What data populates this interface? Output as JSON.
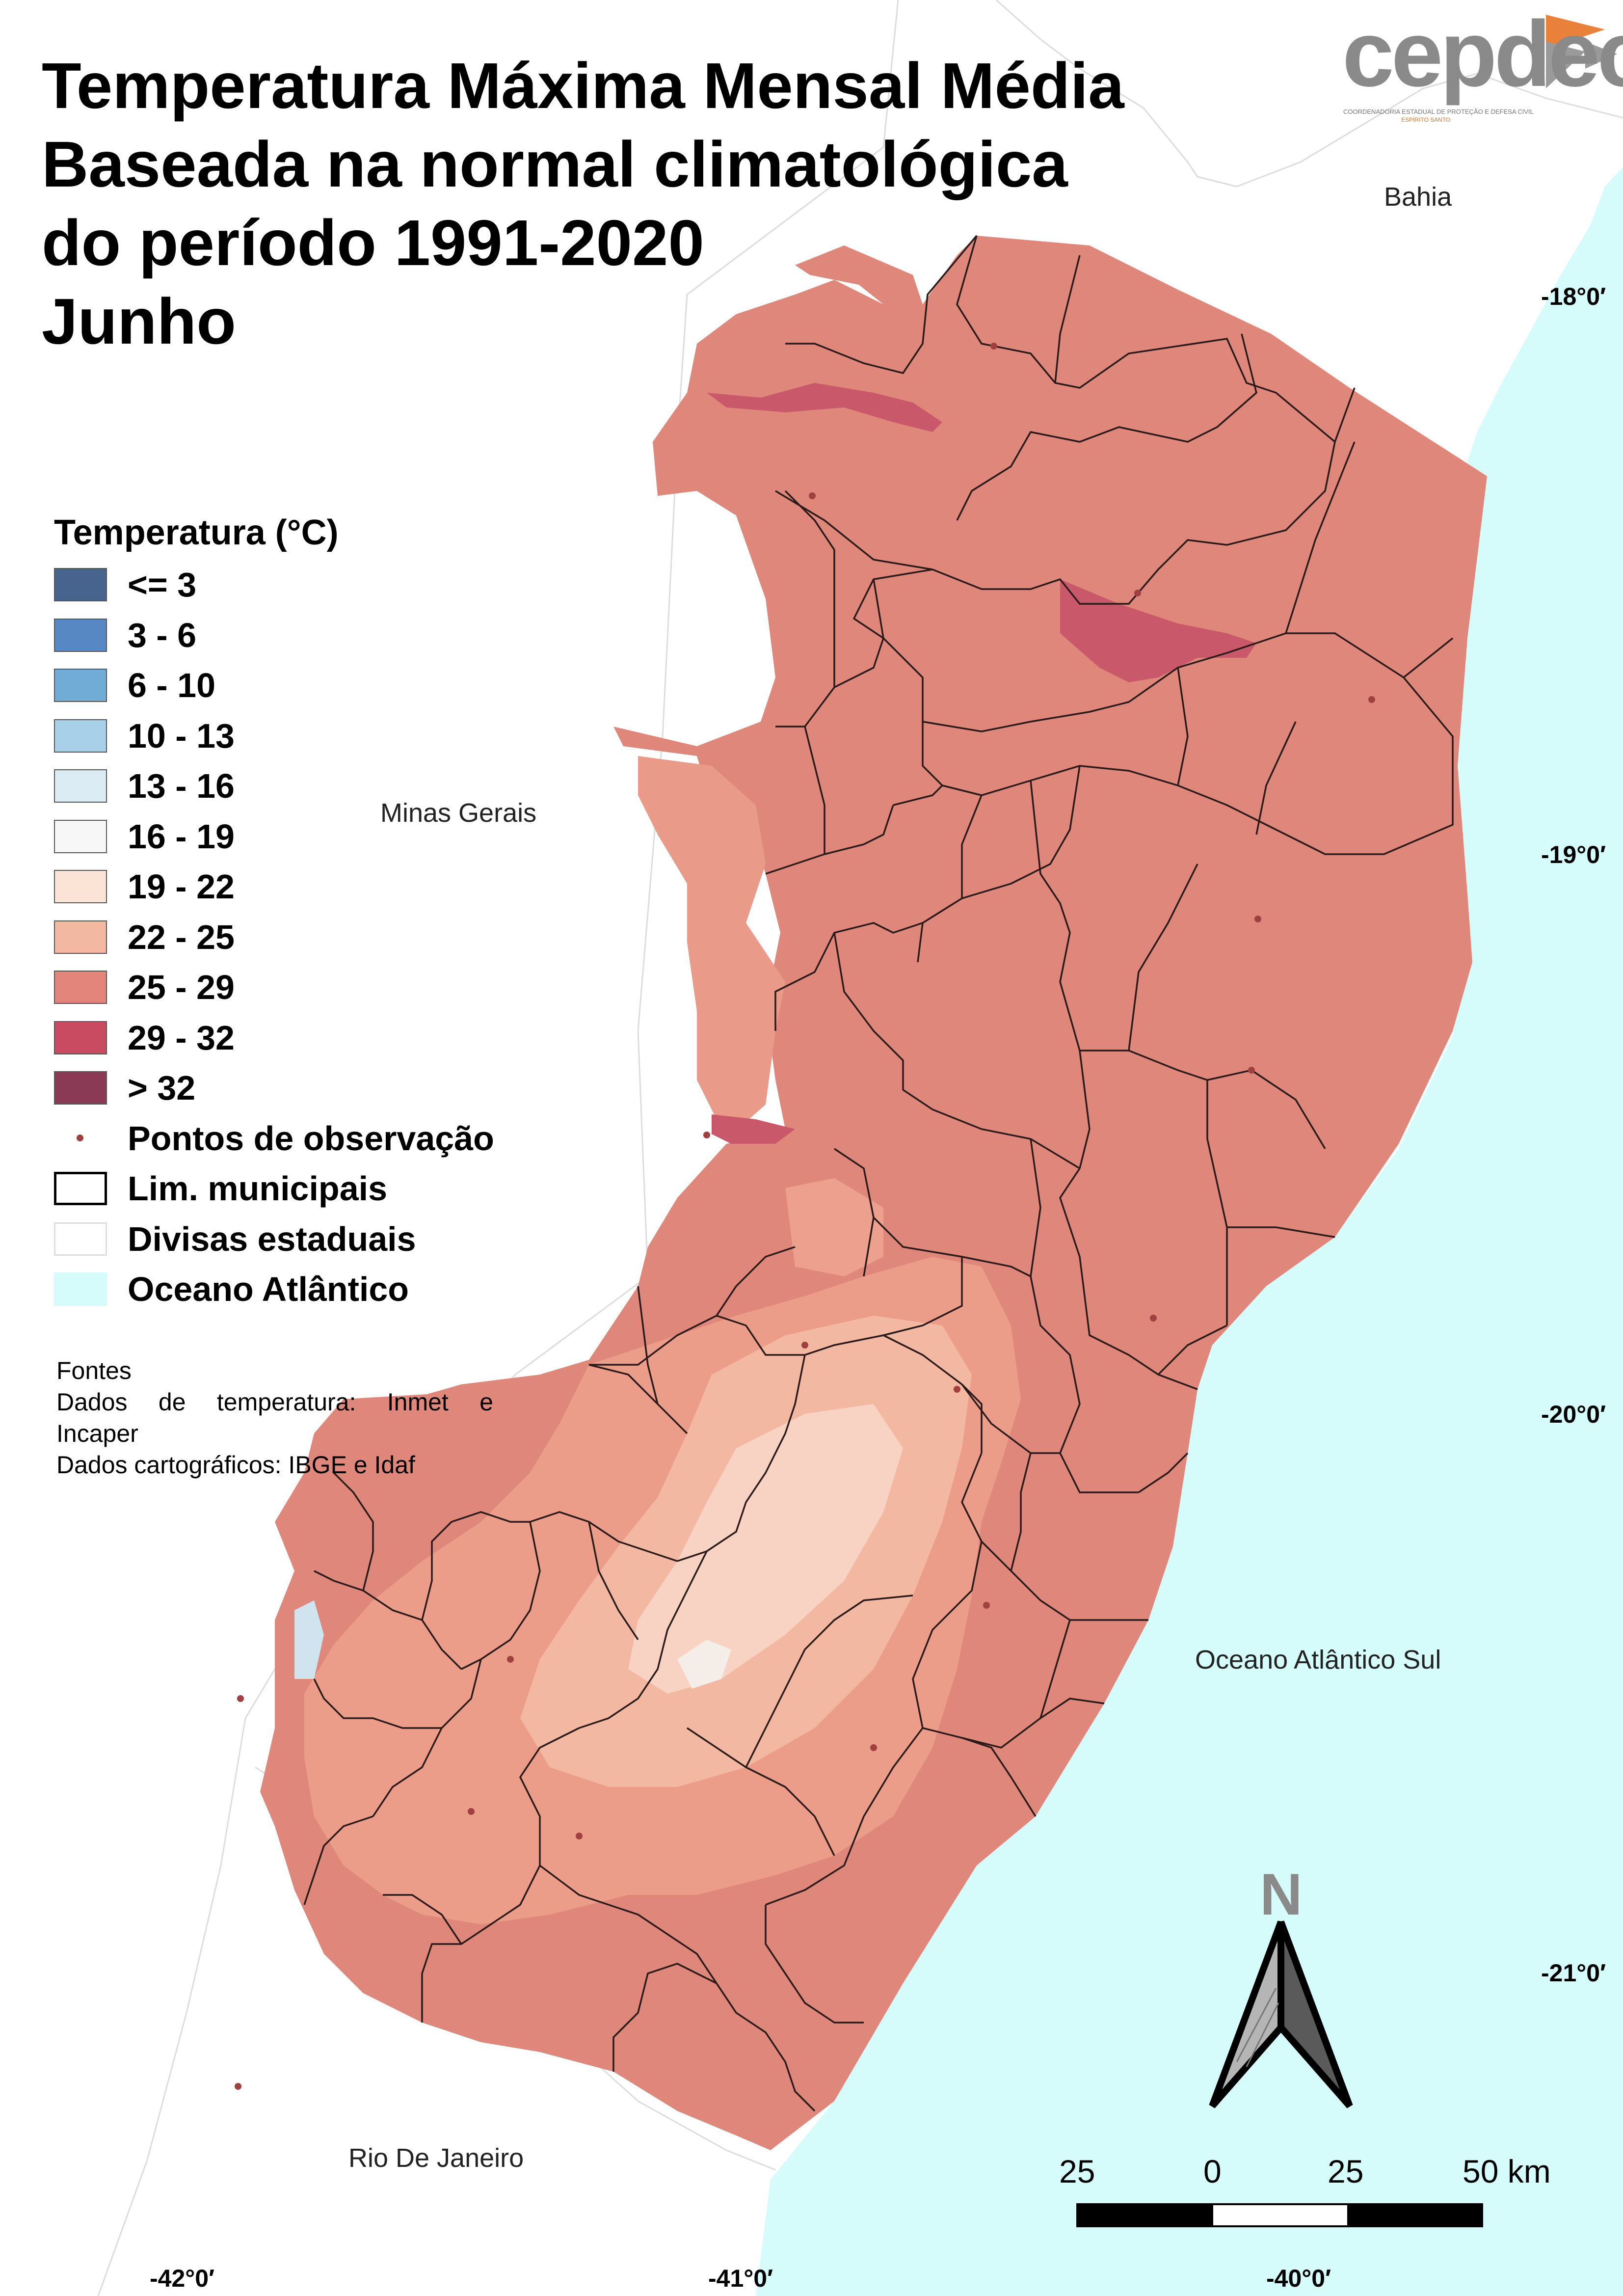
{
  "title": {
    "line1": "Temperatura Máxima Mensal Média",
    "line2": "Baseada na normal climatológica",
    "line3": "do período 1991-2020",
    "line4": "Junho"
  },
  "logo": {
    "text": "cepdec",
    "subtitle": "COORDENADORIA ESTADUAL DE PROTEÇÃO E DEFESA CIVIL",
    "subtitle2": "ESPÍRITO SANTO"
  },
  "legend": {
    "title": "Temperatura (°C)",
    "items": [
      {
        "label": "<= 3",
        "color": "#46648e"
      },
      {
        "label": "3 - 6",
        "color": "#5888c4"
      },
      {
        "label": "6 - 10",
        "color": "#70acd6"
      },
      {
        "label": "10 - 13",
        "color": "#a8d0e8"
      },
      {
        "label": "13 - 16",
        "color": "#dcecf4"
      },
      {
        "label": "16 - 19",
        "color": "#f7f7f7"
      },
      {
        "label": "19 - 22",
        "color": "#fbe3d6"
      },
      {
        "label": "22 - 25",
        "color": "#f2b8a2"
      },
      {
        "label": "25 - 29",
        "color": "#e3857a"
      },
      {
        "label": "29 - 32",
        "color": "#c84b61"
      },
      {
        "label": "> 32",
        "color": "#8a3a55"
      },
      {
        "label": "Pontos de observação",
        "color": "#a04040"
      },
      {
        "label": "Lim. municipais",
        "color": "#000000"
      },
      {
        "label": "Divisas estaduais",
        "color": "#dddddd"
      },
      {
        "label": "Oceano Atlântico",
        "color": "#d6fbfb"
      }
    ]
  },
  "sources": {
    "heading": "Fontes",
    "line1": "Dados de temperatura: Inmet e",
    "line2": "Incaper",
    "line3": "Dados cartográficos: IBGE e Idaf"
  },
  "places": {
    "bahia": "Bahia",
    "minas": "Minas Gerais",
    "ocean": "Oceano Atlântico Sul",
    "rio": "Rio De Janeiro"
  },
  "coords": {
    "lat18": "-18°0′",
    "lat19": "-19°0′",
    "lat20": "-20°0′",
    "lat21": "-21°0′",
    "lon42": "-42°0′",
    "lon41": "-41°0′",
    "lon40": "-40°0′"
  },
  "scale": {
    "l1": "25",
    "l2": "0",
    "l3": "25",
    "l4": "50 km"
  },
  "north": "N"
}
